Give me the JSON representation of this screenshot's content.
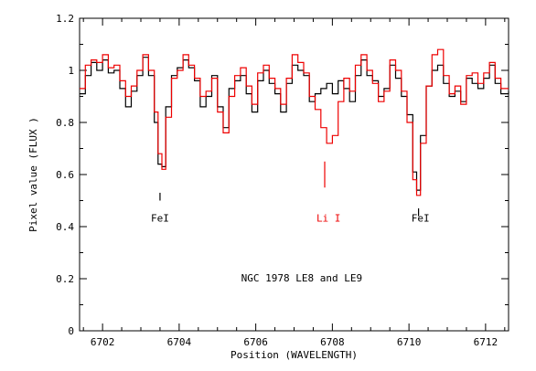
{
  "chart_data": {
    "type": "line",
    "title": "",
    "xlabel": "Position (WAVELENGTH)",
    "ylabel": "Pixel value (FLUX )",
    "xlim": [
      6701.4,
      6712.6
    ],
    "ylim": [
      0,
      1.2
    ],
    "xticks": [
      "6702",
      "6704",
      "6706",
      "6708",
      "6710",
      "6712"
    ],
    "yticks": [
      "0",
      "0.2",
      "0.4",
      "0.6",
      "0.8",
      "1",
      "1.2"
    ],
    "grid": false,
    "colors": {
      "black_series": "#000000",
      "red_series": "#ee0000"
    },
    "annotations": [
      {
        "text": "FeI",
        "x": 6703.5,
        "y": 0.42,
        "color": "#000000"
      },
      {
        "text": "Li I",
        "x": 6707.9,
        "y": 0.42,
        "color": "#ee0000"
      },
      {
        "text": "FeI",
        "x": 6710.3,
        "y": 0.42,
        "color": "#000000"
      },
      {
        "text": "NGC 1978 LE8 and LE9",
        "x": 6707.2,
        "y": 0.19,
        "color": "#000000"
      }
    ],
    "markers": [
      {
        "x": 6703.5,
        "y1": 0.5,
        "y2": 0.53,
        "color": "#000000"
      },
      {
        "x": 6707.8,
        "y1": 0.55,
        "y2": 0.65,
        "color": "#ee0000"
      },
      {
        "x": 6710.25,
        "y1": 0.44,
        "y2": 0.47,
        "color": "#000000"
      }
    ],
    "series": [
      {
        "color": "#000000",
        "step": true,
        "x": [
          6701.4,
          6701.55,
          6701.7,
          6701.85,
          6702.0,
          6702.15,
          6702.3,
          6702.45,
          6702.6,
          6702.75,
          6702.9,
          6703.05,
          6703.2,
          6703.35,
          6703.45,
          6703.55,
          6703.65,
          6703.8,
          6703.95,
          6704.1,
          6704.25,
          6704.4,
          6704.55,
          6704.7,
          6704.85,
          6705.0,
          6705.15,
          6705.3,
          6705.45,
          6705.6,
          6705.75,
          6705.9,
          6706.05,
          6706.2,
          6706.35,
          6706.5,
          6706.65,
          6706.8,
          6706.95,
          6707.1,
          6707.25,
          6707.4,
          6707.55,
          6707.7,
          6707.85,
          6708.0,
          6708.15,
          6708.3,
          6708.45,
          6708.6,
          6708.75,
          6708.9,
          6709.05,
          6709.2,
          6709.35,
          6709.5,
          6709.65,
          6709.8,
          6709.95,
          6710.1,
          6710.2,
          6710.3,
          6710.45,
          6710.6,
          6710.75,
          6710.9,
          6711.05,
          6711.2,
          6711.35,
          6711.5,
          6711.65,
          6711.8,
          6711.95,
          6712.1,
          6712.25,
          6712.4,
          6712.6
        ],
        "y": [
          0.91,
          0.98,
          1.03,
          1.0,
          1.04,
          0.99,
          1.0,
          0.93,
          0.86,
          0.92,
          0.98,
          1.05,
          0.98,
          0.8,
          0.64,
          0.63,
          0.86,
          0.98,
          1.01,
          1.04,
          1.01,
          0.96,
          0.86,
          0.9,
          0.98,
          0.86,
          0.78,
          0.93,
          0.96,
          0.98,
          0.91,
          0.84,
          0.96,
          1.0,
          0.95,
          0.91,
          0.84,
          0.95,
          1.02,
          1.0,
          0.98,
          0.88,
          0.91,
          0.93,
          0.95,
          0.91,
          0.96,
          0.93,
          0.88,
          0.98,
          1.04,
          0.98,
          0.96,
          0.9,
          0.93,
          1.02,
          0.97,
          0.9,
          0.83,
          0.61,
          0.54,
          0.75,
          0.94,
          1.0,
          1.02,
          0.95,
          0.9,
          0.92,
          0.88,
          0.97,
          0.95,
          0.93,
          0.97,
          1.02,
          0.95,
          0.91,
          0.92
        ]
      },
      {
        "color": "#ee0000",
        "step": true,
        "x": [
          6701.4,
          6701.55,
          6701.7,
          6701.85,
          6702.0,
          6702.15,
          6702.3,
          6702.45,
          6702.6,
          6702.75,
          6702.9,
          6703.05,
          6703.2,
          6703.35,
          6703.45,
          6703.55,
          6703.65,
          6703.8,
          6703.95,
          6704.1,
          6704.25,
          6704.4,
          6704.55,
          6704.7,
          6704.85,
          6705.0,
          6705.15,
          6705.3,
          6705.45,
          6705.6,
          6705.75,
          6705.9,
          6706.05,
          6706.2,
          6706.35,
          6706.5,
          6706.65,
          6706.8,
          6706.95,
          6707.1,
          6707.25,
          6707.4,
          6707.55,
          6707.7,
          6707.85,
          6708.0,
          6708.15,
          6708.3,
          6708.45,
          6708.6,
          6708.75,
          6708.9,
          6709.05,
          6709.2,
          6709.35,
          6709.5,
          6709.65,
          6709.8,
          6709.95,
          6710.1,
          6710.2,
          6710.3,
          6710.45,
          6710.6,
          6710.75,
          6710.9,
          6711.05,
          6711.2,
          6711.35,
          6711.5,
          6711.65,
          6711.8,
          6711.95,
          6712.1,
          6712.25,
          6712.4,
          6712.6
        ],
        "y": [
          0.93,
          1.02,
          1.04,
          1.03,
          1.06,
          1.01,
          1.02,
          0.96,
          0.9,
          0.94,
          1.0,
          1.06,
          1.0,
          0.84,
          0.68,
          0.62,
          0.82,
          0.97,
          1.0,
          1.06,
          1.02,
          0.97,
          0.9,
          0.92,
          0.97,
          0.84,
          0.76,
          0.9,
          0.98,
          1.01,
          0.94,
          0.87,
          0.99,
          1.02,
          0.97,
          0.93,
          0.87,
          0.97,
          1.06,
          1.03,
          0.99,
          0.9,
          0.85,
          0.78,
          0.72,
          0.75,
          0.88,
          0.97,
          0.92,
          1.02,
          1.06,
          1.0,
          0.95,
          0.88,
          0.92,
          1.04,
          1.0,
          0.92,
          0.8,
          0.58,
          0.52,
          0.72,
          0.94,
          1.06,
          1.08,
          0.98,
          0.91,
          0.94,
          0.87,
          0.98,
          0.99,
          0.95,
          0.99,
          1.03,
          0.97,
          0.93,
          0.93
        ]
      }
    ]
  }
}
